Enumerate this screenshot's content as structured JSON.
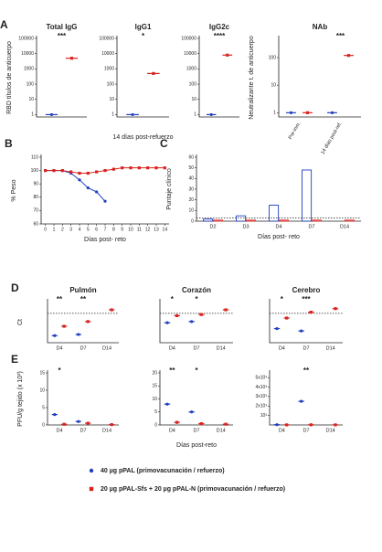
{
  "chart_data": [
    {
      "type": "dot",
      "panel": "A",
      "title": "Total IgG",
      "ylabel": "RBD títulos de anticuerpo",
      "log": true,
      "ylim": [
        0.7,
        100000
      ],
      "yticks": [
        1,
        10,
        100,
        1000,
        10000,
        100000
      ],
      "categories": [
        null
      ],
      "series": [
        {
          "color": "#1f3fbf",
          "marker": "circle",
          "values": [
            1
          ]
        },
        {
          "color": "#d9231f",
          "marker": "square",
          "values": [
            5000
          ]
        }
      ],
      "annotations": [
        "***"
      ]
    },
    {
      "type": "dot",
      "title": "IgG1",
      "xlabel": "14 días post-refuerzo",
      "log": true,
      "ylim": [
        0.7,
        100000
      ],
      "yticks": [
        1,
        10,
        100,
        1000,
        10000,
        100000
      ],
      "categories": [
        null
      ],
      "series": [
        {
          "color": "#1f3fbf",
          "marker": "circle",
          "values": [
            1
          ]
        },
        {
          "color": "#d9231f",
          "marker": "square",
          "values": [
            500
          ]
        }
      ],
      "annotations": [
        "*"
      ]
    },
    {
      "type": "dot",
      "title": "IgG2c",
      "log": true,
      "ylim": [
        0.7,
        100000
      ],
      "yticks": [
        1,
        10,
        100,
        1000,
        10000,
        100000
      ],
      "categories": [
        null
      ],
      "series": [
        {
          "color": "#1f3fbf",
          "marker": "circle",
          "values": [
            1
          ]
        },
        {
          "color": "#d9231f",
          "marker": "square",
          "values": [
            8000
          ]
        }
      ],
      "annotations": [
        "****"
      ]
    },
    {
      "type": "dot",
      "title": "NAb",
      "ylabel": "Neutralizante t. de anticuerpo",
      "log": true,
      "ylim": [
        0.7,
        500
      ],
      "yticks": [
        1,
        10,
        100
      ],
      "categories": [
        "Pre-inm.",
        "14 días post-ref."
      ],
      "series": [
        {
          "color": "#1f3fbf",
          "marker": "circle",
          "values": [
            1,
            1
          ]
        },
        {
          "color": "#d9231f",
          "marker": "square",
          "values": [
            1,
            120
          ]
        }
      ],
      "annotations": [
        null,
        "***"
      ]
    },
    {
      "type": "line",
      "panel": "B",
      "ylabel": "% Peso",
      "xlabel": "Días post- reto",
      "x": [
        0,
        1,
        2,
        3,
        4,
        5,
        6,
        7,
        8,
        9,
        10,
        11,
        12,
        13,
        14
      ],
      "xlim": [
        -0.5,
        14.5
      ],
      "xticks": [
        0,
        1,
        2,
        3,
        4,
        5,
        6,
        7,
        8,
        9,
        10,
        11,
        12,
        13,
        14
      ],
      "ylim": [
        60,
        110
      ],
      "yticks": [
        60,
        70,
        80,
        90,
        100,
        110
      ],
      "series": [
        {
          "color": "#1f3fbf",
          "marker": "circle",
          "values": [
            100,
            100,
            100,
            98,
            93,
            87,
            84,
            77,
            null,
            null,
            null,
            null,
            null,
            null,
            null
          ]
        },
        {
          "color": "#d9231f",
          "marker": "square",
          "values": [
            100,
            100,
            100,
            99,
            98,
            98,
            99,
            100,
            101,
            102,
            102,
            102,
            102,
            102,
            102
          ]
        }
      ]
    },
    {
      "type": "bar",
      "panel": "C",
      "ylabel": "Puntaje clínico",
      "xlabel": "Días post- reto",
      "ylim": [
        0,
        60
      ],
      "yticks": [
        0,
        10,
        20,
        30,
        40,
        50,
        60
      ],
      "threshold": 3,
      "categories": [
        "D2",
        "D3",
        "D4",
        "D7",
        "D14"
      ],
      "series": [
        {
          "color": "#1f3fbf",
          "values": [
            2,
            5,
            15,
            48,
            null
          ]
        },
        {
          "color": "#d9231f",
          "values": [
            1,
            1,
            1,
            1,
            1
          ]
        }
      ]
    },
    {
      "type": "dot",
      "panel": "D",
      "title": "Pulmón",
      "ylabel": "Ct",
      "ylim": [
        10,
        45
      ],
      "threshold": 35,
      "categories": [
        "D4",
        "D7",
        "D14"
      ],
      "series": [
        {
          "color": "#1f3fbf",
          "marker": "circle",
          "values": [
            16,
            17,
            null
          ]
        },
        {
          "color": "#d9231f",
          "marker": "square",
          "values": [
            24,
            28,
            38
          ]
        }
      ],
      "annotations": [
        "**",
        "**",
        null
      ]
    },
    {
      "type": "dot",
      "title": "Corazón",
      "ylim": [
        10,
        45
      ],
      "threshold": 35,
      "categories": [
        "D4",
        "D7",
        "D14"
      ],
      "series": [
        {
          "color": "#1f3fbf",
          "marker": "circle",
          "values": [
            27,
            28,
            null
          ]
        },
        {
          "color": "#d9231f",
          "marker": "square",
          "values": [
            33,
            34,
            38
          ]
        }
      ],
      "annotations": [
        "*",
        "*",
        null
      ]
    },
    {
      "type": "dot",
      "title": "Cerebro",
      "ylim": [
        10,
        45
      ],
      "threshold": 35,
      "categories": [
        "D4",
        "D7",
        "D14"
      ],
      "series": [
        {
          "color": "#1f3fbf",
          "marker": "circle",
          "values": [
            22,
            20,
            null
          ]
        },
        {
          "color": "#d9231f",
          "marker": "square",
          "values": [
            31,
            36,
            39
          ]
        }
      ],
      "annotations": [
        "*",
        "***",
        null
      ]
    },
    {
      "type": "dot",
      "panel": "E",
      "ylabel": "PFU/g tejido (x 10³)",
      "ylim": [
        0,
        15
      ],
      "yticks": [
        0,
        5,
        10,
        15
      ],
      "categories": [
        "D4",
        "D7",
        "D14"
      ],
      "series": [
        {
          "color": "#1f3fbf",
          "marker": "circle",
          "values": [
            3,
            1,
            null
          ]
        },
        {
          "color": "#d9231f",
          "marker": "square",
          "values": [
            0.2,
            0.5,
            0.1
          ]
        }
      ],
      "annotations": [
        "*",
        null,
        null
      ]
    },
    {
      "type": "dot",
      "xlabel": "Días post-reto",
      "ylim": [
        0,
        20
      ],
      "yticks": [
        0,
        5,
        10,
        15,
        20
      ],
      "categories": [
        "D4",
        "D7",
        "D14"
      ],
      "series": [
        {
          "color": "#1f3fbf",
          "marker": "circle",
          "values": [
            8,
            5,
            null
          ]
        },
        {
          "color": "#d9231f",
          "marker": "square",
          "values": [
            1,
            0.5,
            0.3
          ]
        }
      ],
      "annotations": [
        "**",
        "*",
        null
      ]
    },
    {
      "type": "dot",
      "ylim": [
        0,
        5500
      ],
      "yticks": [
        {
          "value": 1000,
          "label": "10³"
        },
        {
          "value": 2000,
          "label": "2x10³"
        },
        {
          "value": 3000,
          "label": "3x10³"
        },
        {
          "value": 4000,
          "label": "4x10³"
        },
        {
          "value": 5000,
          "label": "5x10³"
        }
      ],
      "categories": [
        "D4",
        "D7",
        "D14"
      ],
      "series": [
        {
          "color": "#1f3fbf",
          "marker": "circle",
          "values": [
            30,
            2500,
            null
          ]
        },
        {
          "color": "#d9231f",
          "marker": "square",
          "values": [
            10,
            20,
            10
          ]
        }
      ],
      "annotations": [
        null,
        "**",
        null
      ]
    }
  ],
  "legend": [
    {
      "label": "40 µg pPAL (primovacunación / refuerzo)",
      "color": "#1f3fbf",
      "marker": "circle"
    },
    {
      "label": "20 µg pPAL-Sfs + 20 µg pPAL-N (primovacunación / refuerzo)",
      "color": "#d9231f",
      "marker": "square"
    }
  ]
}
